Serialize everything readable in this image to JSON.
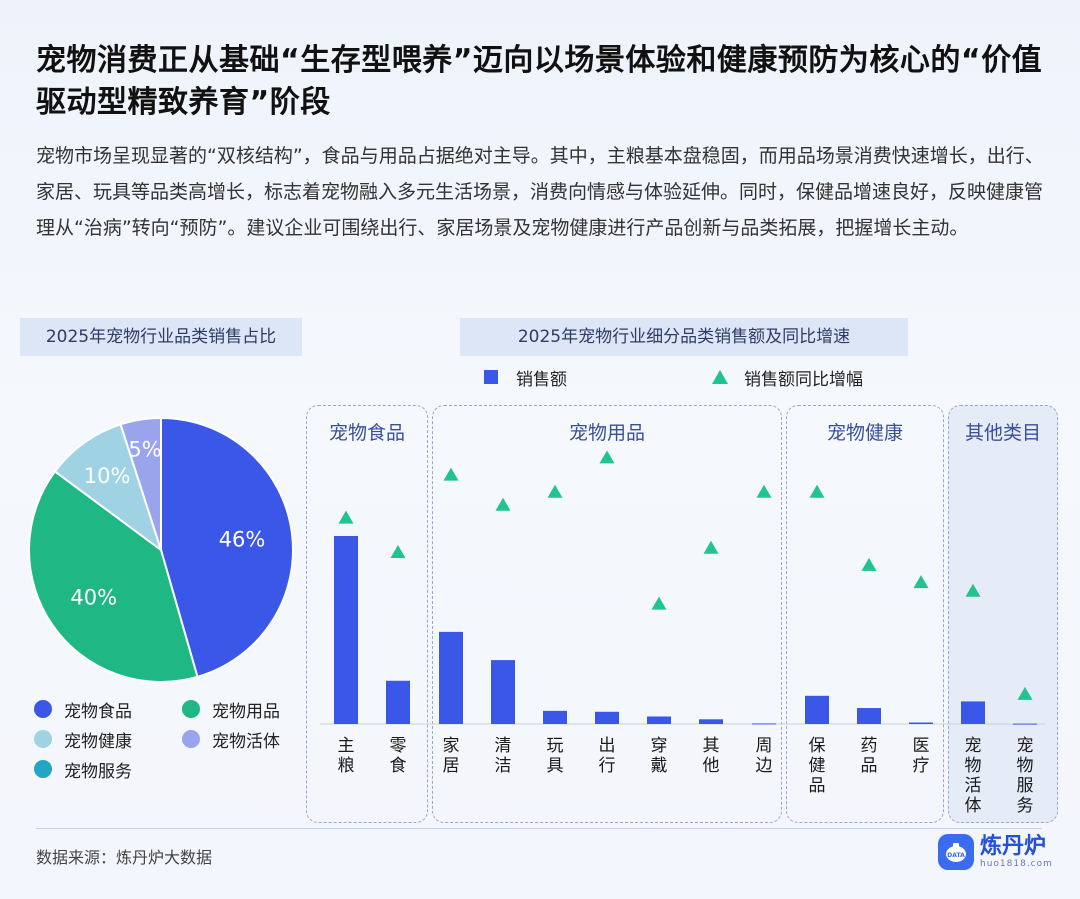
{
  "title": "宠物消费正从基础“生存型喂养”迈向以场景体验和健康预防为核心的“价值驱动型精致养育”阶段",
  "description": "宠物市场呈现显著的“双核结构”，食品与用品占据绝对主导。其中，主粮基本盘稳固，而用品场景消费快速增长，出行、家居、玩具等品类高增长，标志着宠物融入多元生活场景，消费向情感与体验延伸。同时，保健品增速良好，反映健康管理从“治病”转向“预防”。建议企业可围绕出行、家居场景及宠物健康进行产品创新与品类拓展，把握增长主动。",
  "source": "数据来源：炼丹炉大数据",
  "logo": {
    "name": "炼丹炉",
    "domain": "huo1818.com",
    "mark_text": "DATA"
  },
  "chart_data": [
    {
      "type": "pie",
      "title": "2025年宠物行业品类销售占比",
      "slices": [
        {
          "label": "宠物食品",
          "value": 46,
          "display": "46%",
          "color": "#3a57e8"
        },
        {
          "label": "宠物用品",
          "value": 40,
          "display": "40%",
          "color": "#1fb884"
        },
        {
          "label": "宠物健康",
          "value": 10,
          "display": "10%",
          "color": "#9fd3e4"
        },
        {
          "label": "宠物活体",
          "value": 5,
          "display": "5%",
          "color": "#9aa4ec"
        },
        {
          "label": "宠物服务",
          "value": 0,
          "display": "",
          "color": "#23a6c6"
        }
      ],
      "legend": [
        "宠物食品",
        "宠物用品",
        "宠物健康",
        "宠物活体",
        "宠物服务"
      ],
      "legend_placement": "bottom"
    },
    {
      "type": "bar",
      "title": "2025年宠物行业细分品类销售额及同比增速",
      "legend": {
        "sales": "销售额",
        "growth": "销售额同比增幅"
      },
      "colors": {
        "sales": "#3a57e8",
        "growth": "#21c48f"
      },
      "groups": [
        {
          "name": "宠物食品",
          "categories": [
            "主粮",
            "零食"
          ]
        },
        {
          "name": "宠物用品",
          "categories": [
            "家居",
            "清洁",
            "玩具",
            "出行",
            "穿戴",
            "其他",
            "周边"
          ]
        },
        {
          "name": "宠物健康",
          "categories": [
            "保健品",
            "药品",
            "医疗"
          ]
        },
        {
          "name": "其他类目",
          "categories": [
            "宠物活体",
            "宠物服务"
          ]
        }
      ],
      "categories": [
        "主粮",
        "零食",
        "家居",
        "清洁",
        "玩具",
        "出行",
        "穿戴",
        "其他",
        "周边",
        "保健品",
        "药品",
        "医疗",
        "宠物活体",
        "宠物服务"
      ],
      "series": [
        {
          "name": "销售额",
          "kind": "bar",
          "values": [
            100,
            23,
            49,
            34,
            7,
            6.5,
            4,
            2.5,
            0.3,
            15,
            8.5,
            0.8,
            12,
            0.2
          ]
        },
        {
          "name": "销售额同比增幅",
          "kind": "marker-triangle",
          "values": [
            48,
            40,
            58,
            51,
            54,
            62,
            28,
            41,
            54,
            54,
            37,
            33,
            31,
            7
          ]
        }
      ],
      "ylim_sales": [
        0,
        100
      ],
      "ylim_growth": [
        0,
        70
      ],
      "axis_ticks_shown": false,
      "grid": false
    }
  ]
}
